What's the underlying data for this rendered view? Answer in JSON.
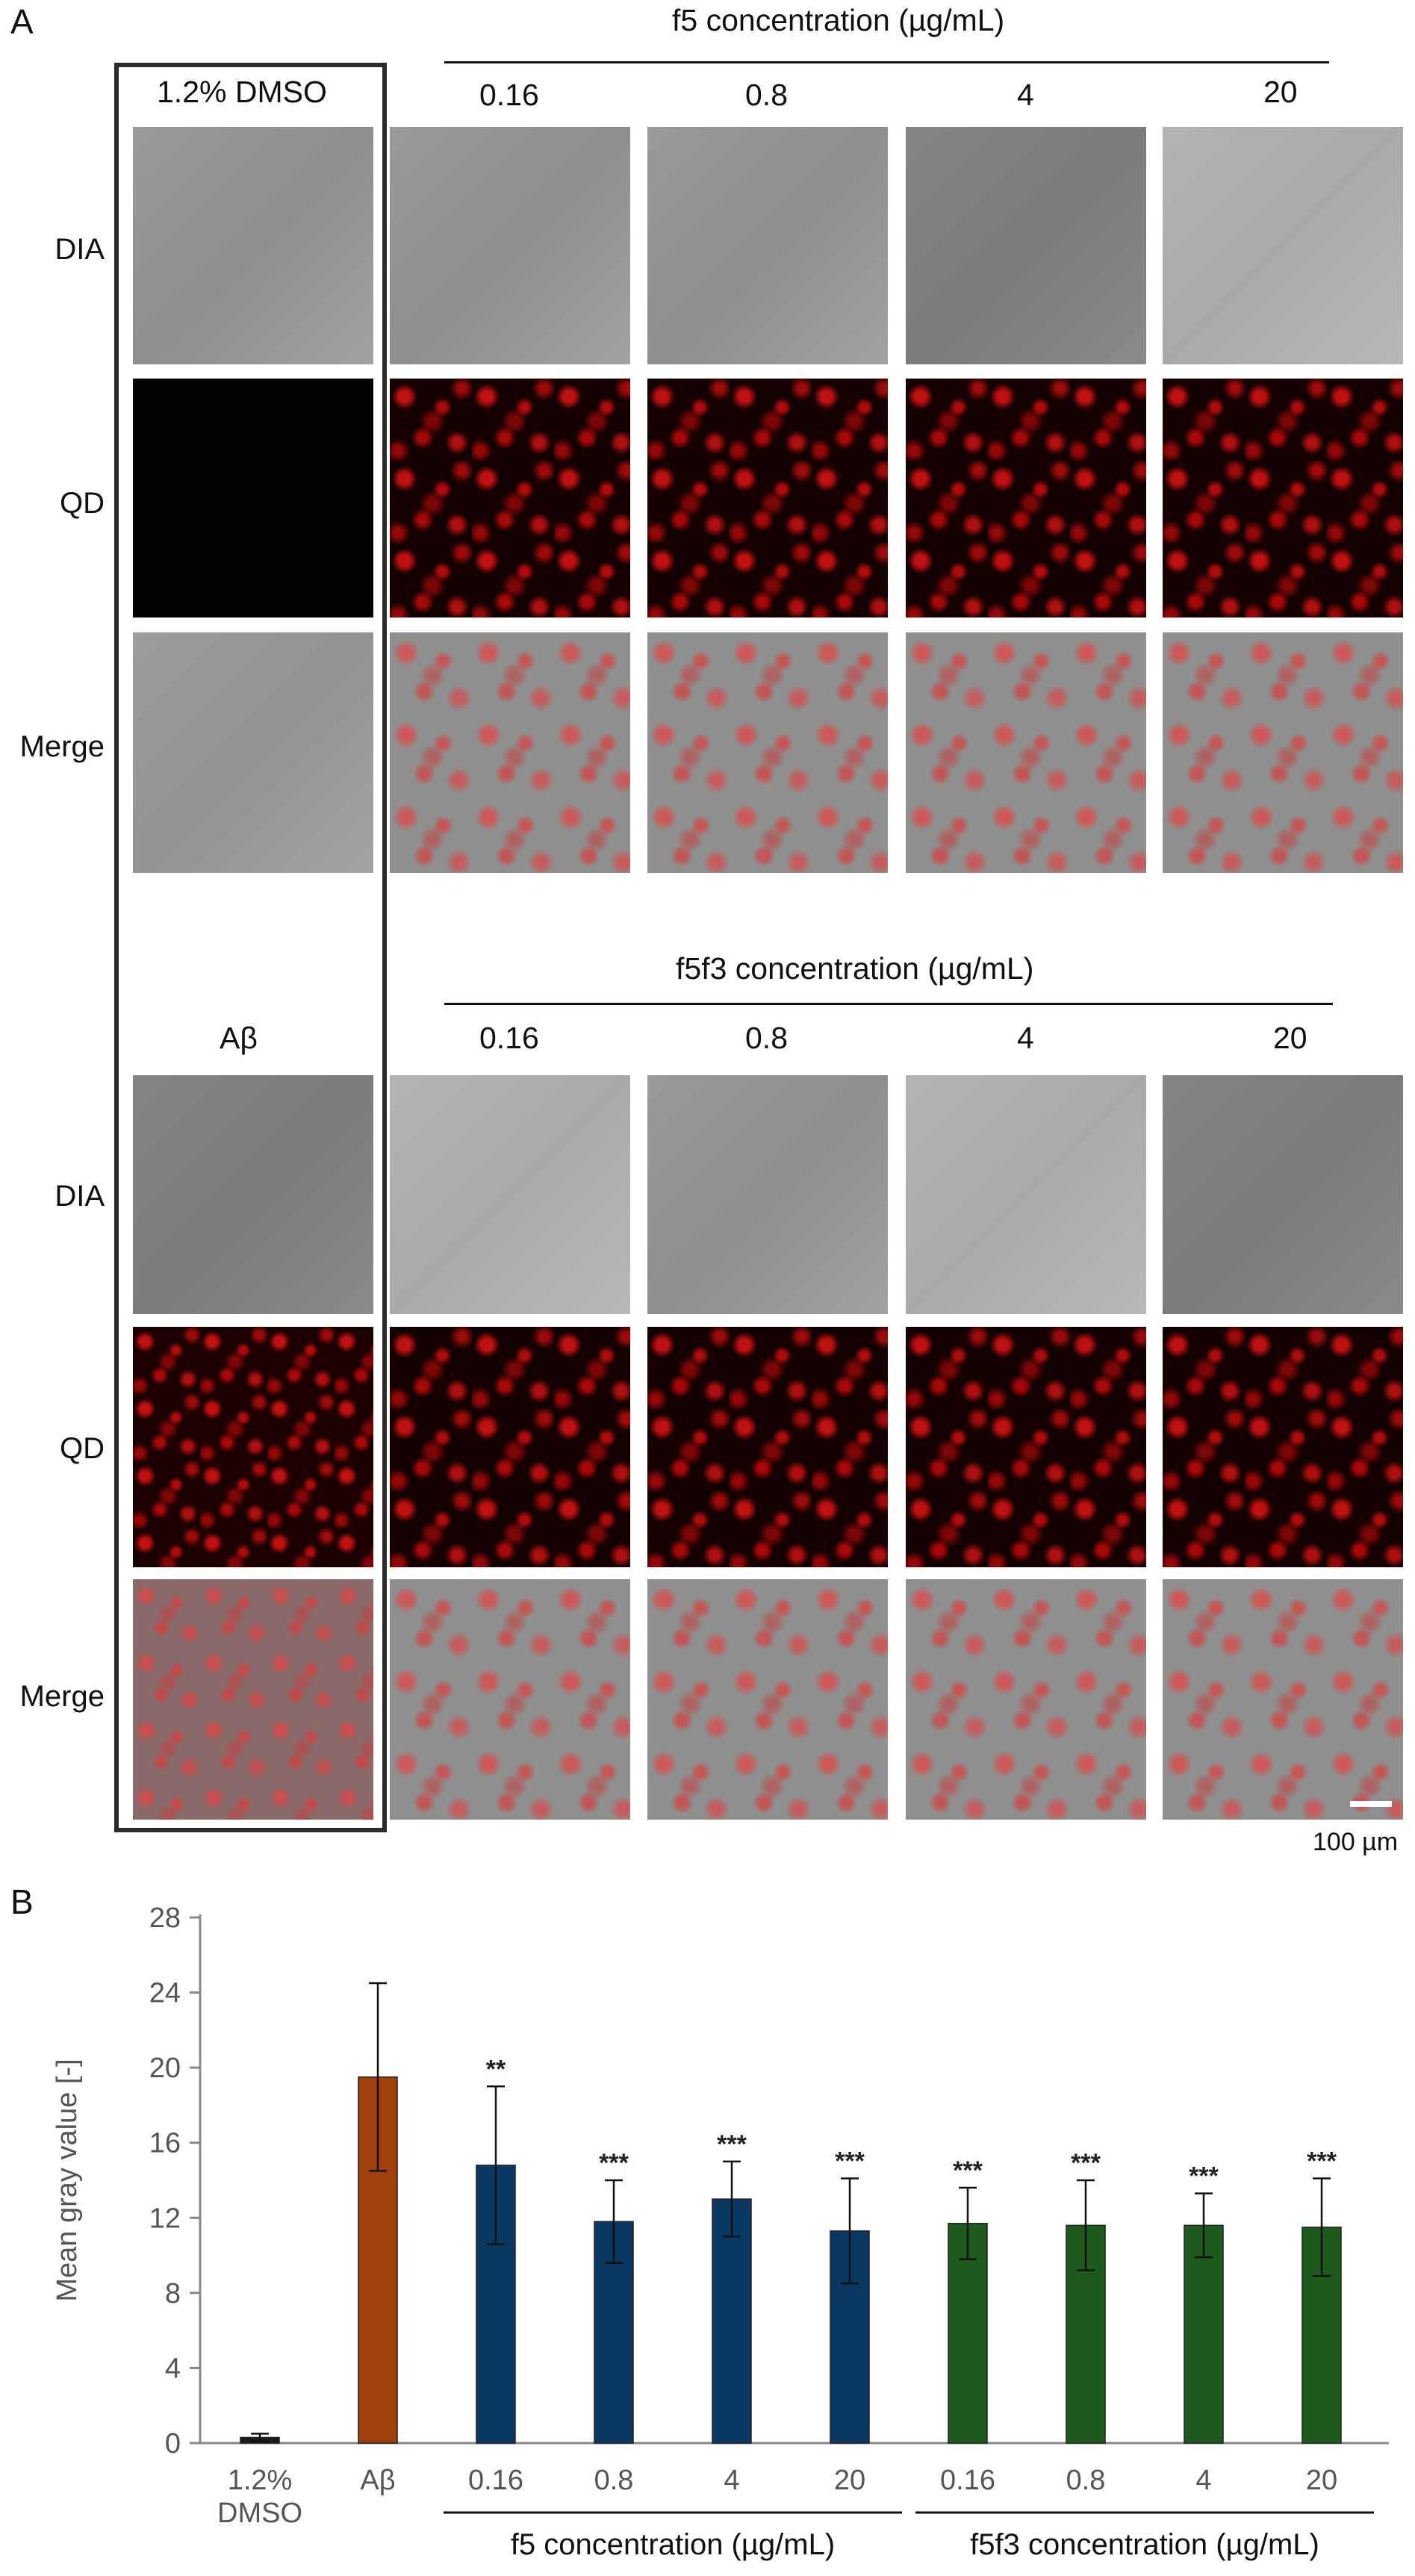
{
  "panel_a": {
    "letter": "A",
    "top_group": {
      "control_label": "1.2% DMSO",
      "concentration_header": "f5 concentration (µg/mL)",
      "columns": [
        "0.16",
        "0.8",
        "4",
        "20"
      ]
    },
    "bottom_group": {
      "control_label": "Aβ",
      "concentration_header": "f5f3 concentration (µg/mL)",
      "columns": [
        "0.16",
        "0.8",
        "4",
        "20"
      ]
    },
    "row_labels": [
      "DIA",
      "QD",
      "Merge"
    ],
    "scale_bar_label": "100 µm"
  },
  "panel_b": {
    "letter": "B",
    "group_labels": [
      "f5 concentration (µg/mL)",
      "f5f3 concentration (µg/mL)"
    ]
  },
  "chart_data": {
    "type": "bar",
    "title": "",
    "xlabel": "",
    "ylabel": "Mean gray value [-]",
    "ylim": [
      0,
      28
    ],
    "yticks": [
      0,
      4,
      8,
      12,
      16,
      20,
      24,
      28
    ],
    "categories": [
      "1.2%\nDMSO",
      "Aβ",
      "0.16",
      "0.8",
      "4",
      "20",
      "0.16",
      "0.8",
      "4",
      "20"
    ],
    "values": [
      0.3,
      19.5,
      14.8,
      11.8,
      13.0,
      11.3,
      11.7,
      11.6,
      11.6,
      11.5
    ],
    "errors": [
      0.2,
      5.0,
      4.2,
      2.2,
      2.0,
      2.8,
      1.9,
      2.4,
      1.7,
      2.6
    ],
    "significance": [
      "",
      "",
      "**",
      "***",
      "***",
      "***",
      "***",
      "***",
      "***",
      "***"
    ],
    "bar_colors": [
      "#1a1a1a",
      "#a0400c",
      "#0b3763",
      "#0b3763",
      "#0b3763",
      "#0b3763",
      "#1e5a1e",
      "#1e5a1e",
      "#1e5a1e",
      "#1e5a1e"
    ],
    "grid": false,
    "legend": "none"
  }
}
